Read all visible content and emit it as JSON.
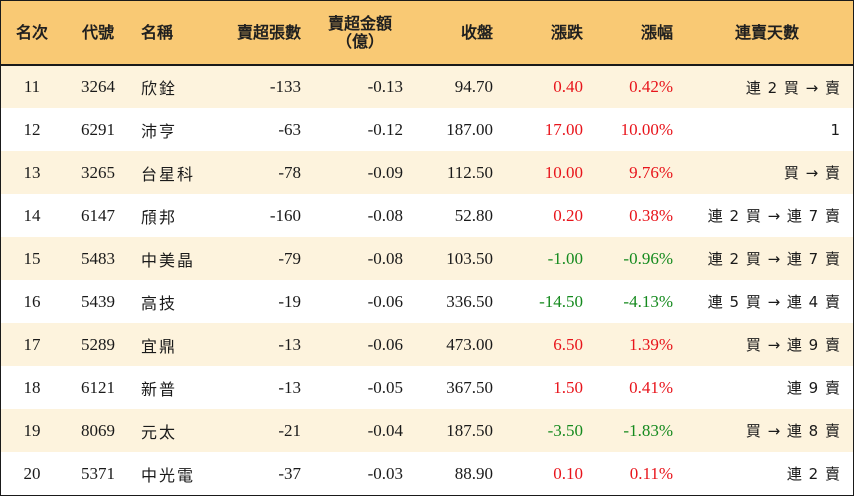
{
  "headers": {
    "rank": "名次",
    "code": "代號",
    "name": "名稱",
    "sell_lots": "賣超張數",
    "sell_amount_line1": "賣超金額",
    "sell_amount_line2": "（億）",
    "close": "收盤",
    "change": "漲跌",
    "change_pct": "漲幅",
    "streak": "連賣天數"
  },
  "colors": {
    "header_bg": "#f9c974",
    "odd_row_bg": "#fdf3dd",
    "up": "#e8141b",
    "down": "#158a1e"
  },
  "rows": [
    {
      "rank": "11",
      "code": "3264",
      "name": "欣銓",
      "sell_lots": "-133",
      "sell_amount": "-0.13",
      "close": "94.70",
      "change": "0.40",
      "change_pct": "0.42%",
      "dir": "up",
      "streak": "連 2 買 → 賣"
    },
    {
      "rank": "12",
      "code": "6291",
      "name": "沛亨",
      "sell_lots": "-63",
      "sell_amount": "-0.12",
      "close": "187.00",
      "change": "17.00",
      "change_pct": "10.00%",
      "dir": "up",
      "streak": "1"
    },
    {
      "rank": "13",
      "code": "3265",
      "name": "台星科",
      "sell_lots": "-78",
      "sell_amount": "-0.09",
      "close": "112.50",
      "change": "10.00",
      "change_pct": "9.76%",
      "dir": "up",
      "streak": "買 → 賣"
    },
    {
      "rank": "14",
      "code": "6147",
      "name": "頎邦",
      "sell_lots": "-160",
      "sell_amount": "-0.08",
      "close": "52.80",
      "change": "0.20",
      "change_pct": "0.38%",
      "dir": "up",
      "streak": "連 2 買 → 連 7 賣"
    },
    {
      "rank": "15",
      "code": "5483",
      "name": "中美晶",
      "sell_lots": "-79",
      "sell_amount": "-0.08",
      "close": "103.50",
      "change": "-1.00",
      "change_pct": "-0.96%",
      "dir": "down",
      "streak": "連 2 買 → 連 7 賣"
    },
    {
      "rank": "16",
      "code": "5439",
      "name": "高技",
      "sell_lots": "-19",
      "sell_amount": "-0.06",
      "close": "336.50",
      "change": "-14.50",
      "change_pct": "-4.13%",
      "dir": "down",
      "streak": "連 5 買 → 連 4 賣"
    },
    {
      "rank": "17",
      "code": "5289",
      "name": "宜鼎",
      "sell_lots": "-13",
      "sell_amount": "-0.06",
      "close": "473.00",
      "change": "6.50",
      "change_pct": "1.39%",
      "dir": "up",
      "streak": "買 → 連 9 賣"
    },
    {
      "rank": "18",
      "code": "6121",
      "name": "新普",
      "sell_lots": "-13",
      "sell_amount": "-0.05",
      "close": "367.50",
      "change": "1.50",
      "change_pct": "0.41%",
      "dir": "up",
      "streak": "連 9 賣"
    },
    {
      "rank": "19",
      "code": "8069",
      "name": "元太",
      "sell_lots": "-21",
      "sell_amount": "-0.04",
      "close": "187.50",
      "change": "-3.50",
      "change_pct": "-1.83%",
      "dir": "down",
      "streak": "買 → 連 8 賣"
    },
    {
      "rank": "20",
      "code": "5371",
      "name": "中光電",
      "sell_lots": "-37",
      "sell_amount": "-0.03",
      "close": "88.90",
      "change": "0.10",
      "change_pct": "0.11%",
      "dir": "up",
      "streak": "連 2 賣"
    }
  ]
}
